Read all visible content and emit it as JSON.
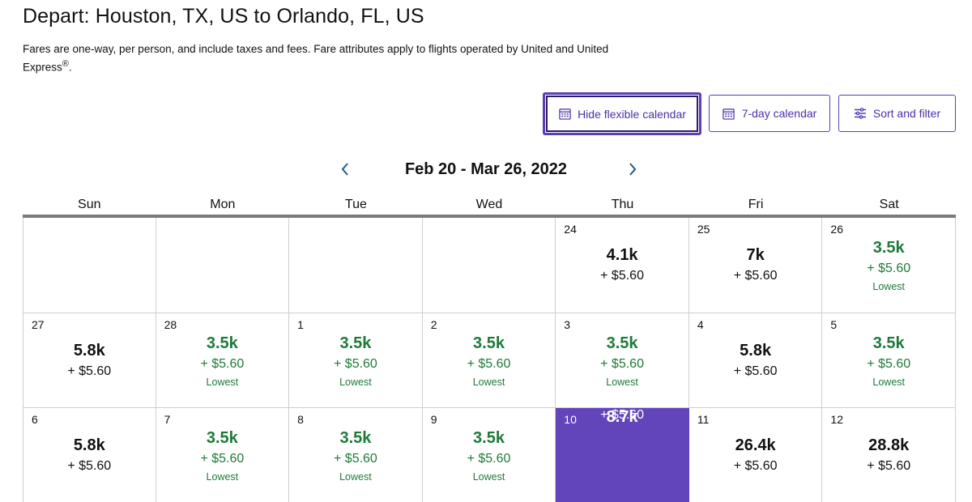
{
  "header": {
    "title": "Depart: Houston, TX, US to Orlando, FL, US",
    "disclaimer_main": "Fares are one-way, per person, and include taxes and fees. Fare attributes apply to flights operated by United and United Express",
    "disclaimer_reg": "®",
    "disclaimer_end": "."
  },
  "toolbar": {
    "hide_flexible_label": "Hide flexible calendar",
    "seven_day_label": "7-day calendar",
    "sort_filter_label": "Sort and filter"
  },
  "calendar": {
    "range_label": "Feb 20 - Mar 26, 2022",
    "weekdays": [
      "Sun",
      "Mon",
      "Tue",
      "Wed",
      "Thu",
      "Fri",
      "Sat"
    ],
    "weeks": [
      [
        {
          "day": "",
          "fare": "",
          "fee": "",
          "tag": "",
          "state": "empty"
        },
        {
          "day": "",
          "fare": "",
          "fee": "",
          "tag": "",
          "state": "empty"
        },
        {
          "day": "",
          "fare": "",
          "fee": "",
          "tag": "",
          "state": "empty"
        },
        {
          "day": "",
          "fare": "",
          "fee": "",
          "tag": "",
          "state": "empty"
        },
        {
          "day": "24",
          "fare": "4.1k",
          "fee": "+ $5.60",
          "tag": "",
          "state": "regular"
        },
        {
          "day": "25",
          "fare": "7k",
          "fee": "+ $5.60",
          "tag": "",
          "state": "regular"
        },
        {
          "day": "26",
          "fare": "3.5k",
          "fee": "+ $5.60",
          "tag": "Lowest",
          "state": "lowest"
        }
      ],
      [
        {
          "day": "27",
          "fare": "5.8k",
          "fee": "+ $5.60",
          "tag": "",
          "state": "regular"
        },
        {
          "day": "28",
          "fare": "3.5k",
          "fee": "+ $5.60",
          "tag": "Lowest",
          "state": "lowest"
        },
        {
          "day": "1",
          "fare": "3.5k",
          "fee": "+ $5.60",
          "tag": "Lowest",
          "state": "lowest"
        },
        {
          "day": "2",
          "fare": "3.5k",
          "fee": "+ $5.60",
          "tag": "Lowest",
          "state": "lowest"
        },
        {
          "day": "3",
          "fare": "3.5k",
          "fee": "+ $5.60",
          "tag": "Lowest",
          "state": "lowest"
        },
        {
          "day": "4",
          "fare": "5.8k",
          "fee": "+ $5.60",
          "tag": "",
          "state": "regular"
        },
        {
          "day": "5",
          "fare": "3.5k",
          "fee": "+ $5.60",
          "tag": "Lowest",
          "state": "lowest"
        }
      ],
      [
        {
          "day": "6",
          "fare": "5.8k",
          "fee": "+ $5.60",
          "tag": "",
          "state": "regular"
        },
        {
          "day": "7",
          "fare": "3.5k",
          "fee": "+ $5.60",
          "tag": "Lowest",
          "state": "lowest"
        },
        {
          "day": "8",
          "fare": "3.5k",
          "fee": "+ $5.60",
          "tag": "Lowest",
          "state": "lowest"
        },
        {
          "day": "9",
          "fare": "3.5k",
          "fee": "+ $5.60",
          "tag": "Lowest",
          "state": "lowest"
        },
        {
          "day": "10",
          "fare": "8.7k",
          "fee": "+ $5.60",
          "tag": "",
          "state": "selected"
        },
        {
          "day": "11",
          "fare": "26.4k",
          "fee": "+ $5.60",
          "tag": "",
          "state": "regular"
        },
        {
          "day": "12",
          "fare": "28.8k",
          "fee": "+ $5.60",
          "tag": "",
          "state": "regular"
        }
      ]
    ]
  },
  "icons": {
    "prev": "chevron-left-icon",
    "next": "chevron-right-icon",
    "calendar": "calendar-icon",
    "sliders": "sliders-icon"
  },
  "colors": {
    "accent": "#6244bb",
    "lowest_green": "#1f7a3a"
  }
}
